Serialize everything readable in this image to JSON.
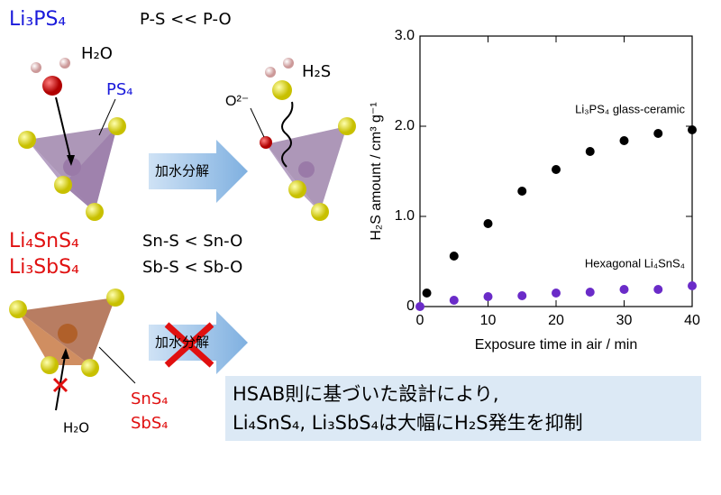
{
  "diagram": {
    "li3ps4": "Li₃PS₄",
    "ps_bond": "P-S << P-O",
    "h2o_top": "H₂O",
    "ps4": "PS₄",
    "o2": "O²⁻",
    "h2s": "H₂S",
    "arrow1": "加水分解",
    "li4snS4": "Li₄SnS₄",
    "li3sbs4": "Li₃SbS₄",
    "sn_bond": "Sn-S < Sn-O",
    "sb_bond": "Sb-S < Sb-O",
    "arrow2": "加水分解",
    "sns4": "SnS₄",
    "sbs4": "SbS₄",
    "h2o_bottom": "H₂O",
    "box_line1": "HSAB則に基づいた設計により,",
    "box_line2": "Li₄SnS₄, Li₃SbS₄は大幅にH₂S発生を抑制"
  },
  "chart_data": {
    "type": "scatter",
    "xlabel": "Exposure time in air / min",
    "ylabel": "H₂S amount / cm³ g⁻¹",
    "xlim": [
      0,
      40
    ],
    "xticks": [
      0,
      10,
      20,
      30,
      40
    ],
    "ylim": [
      0,
      3
    ],
    "yticks": [
      0,
      {
        "value": 1,
        "label": "1.0"
      },
      {
        "value": 2,
        "label": "2.0"
      },
      {
        "value": 3,
        "label": "3.0"
      }
    ],
    "series": [
      {
        "name": "Li₃PS₄ glass-ceramic",
        "color": "#000000",
        "x": [
          1,
          5,
          10,
          15,
          20,
          25,
          30,
          35,
          40
        ],
        "values": [
          0.15,
          0.56,
          0.92,
          1.28,
          1.52,
          1.72,
          1.84,
          1.92,
          1.96
        ]
      },
      {
        "name": "Hexagonal Li₄SnS₄",
        "color": "#6a2bc8",
        "x": [
          0,
          5,
          10,
          15,
          20,
          25,
          30,
          35,
          40
        ],
        "values": [
          0,
          0.07,
          0.11,
          0.12,
          0.15,
          0.16,
          0.19,
          0.19,
          0.23
        ]
      }
    ]
  }
}
